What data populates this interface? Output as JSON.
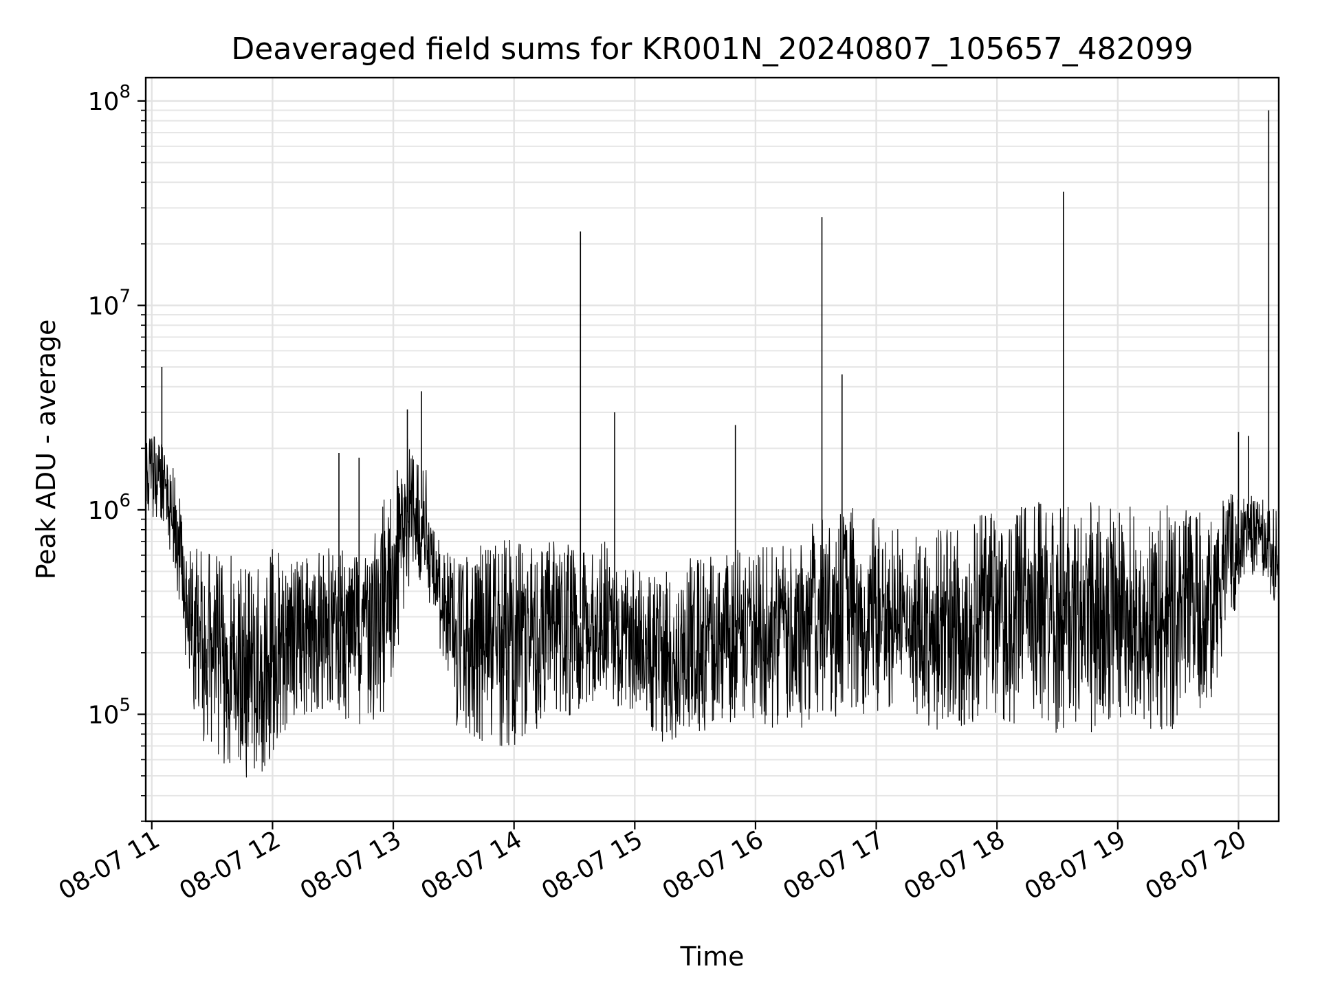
{
  "chart_data": {
    "type": "line",
    "title": "Deaveraged field sums for KR001N_20240807_105657_482099",
    "xlabel": "Time",
    "ylabel": "Peak ADU - average",
    "x_axis": {
      "kind": "datetime",
      "range": [
        "2024-08-07T10:57:00",
        "2024-08-07T20:20:00"
      ],
      "tick_values": [
        "2024-08-07T11:00",
        "2024-08-07T12:00",
        "2024-08-07T13:00",
        "2024-08-07T14:00",
        "2024-08-07T15:00",
        "2024-08-07T16:00",
        "2024-08-07T17:00",
        "2024-08-07T18:00",
        "2024-08-07T19:00",
        "2024-08-07T20:00"
      ],
      "tick_labels": [
        "08-07 11",
        "08-07 12",
        "08-07 13",
        "08-07 14",
        "08-07 15",
        "08-07 16",
        "08-07 17",
        "08-07 18",
        "08-07 19",
        "08-07 20"
      ]
    },
    "y_axis": {
      "scale": "log",
      "range": [
        30000,
        130000000
      ],
      "ticks": [
        {
          "value": 100000,
          "base": "10",
          "exp": "5"
        },
        {
          "value": 1000000,
          "base": "10",
          "exp": "6"
        },
        {
          "value": 10000000,
          "base": "10",
          "exp": "7"
        },
        {
          "value": 100000000,
          "base": "10",
          "exp": "8"
        }
      ]
    },
    "grid": true,
    "line_color": "#000000",
    "series": [
      {
        "x": [
          "2024-08-07T10:57",
          "2024-08-07T11:03",
          "2024-08-07T11:08",
          "2024-08-07T11:13",
          "2024-08-07T11:18",
          "2024-08-07T11:23",
          "2024-08-07T11:30",
          "2024-08-07T11:40",
          "2024-08-07T11:50",
          "2024-08-07T12:00",
          "2024-08-07T12:10",
          "2024-08-07T12:20",
          "2024-08-07T12:30",
          "2024-08-07T12:40",
          "2024-08-07T12:50",
          "2024-08-07T12:55",
          "2024-08-07T13:00",
          "2024-08-07T13:10",
          "2024-08-07T13:15",
          "2024-08-07T13:20",
          "2024-08-07T13:30",
          "2024-08-07T13:45",
          "2024-08-07T14:00",
          "2024-08-07T14:15",
          "2024-08-07T14:30",
          "2024-08-07T14:45",
          "2024-08-07T15:00",
          "2024-08-07T15:15",
          "2024-08-07T15:30",
          "2024-08-07T15:45",
          "2024-08-07T16:00",
          "2024-08-07T16:15",
          "2024-08-07T16:30",
          "2024-08-07T16:45",
          "2024-08-07T17:00",
          "2024-08-07T17:15",
          "2024-08-07T17:30",
          "2024-08-07T17:45",
          "2024-08-07T18:00",
          "2024-08-07T18:15",
          "2024-08-07T18:30",
          "2024-08-07T18:45",
          "2024-08-07T19:00",
          "2024-08-07T19:15",
          "2024-08-07T19:30",
          "2024-08-07T19:45",
          "2024-08-07T19:55",
          "2024-08-07T20:05",
          "2024-08-07T20:15",
          "2024-08-07T20:20"
        ],
        "lower": [
          900000,
          900000,
          700000,
          300000,
          150000,
          80000,
          60000,
          50000,
          45000,
          60000,
          90000,
          100000,
          110000,
          80000,
          90000,
          100000,
          150000,
          500000,
          400000,
          300000,
          80000,
          70000,
          70000,
          90000,
          100000,
          110000,
          100000,
          70000,
          80000,
          90000,
          90000,
          80000,
          90000,
          100000,
          100000,
          110000,
          80000,
          80000,
          90000,
          90000,
          80000,
          80000,
          90000,
          80000,
          85000,
          100000,
          250000,
          500000,
          400000,
          300000
        ],
        "upper": [
          2500000,
          2200000,
          2000000,
          1500000,
          700000,
          650000,
          600000,
          600000,
          550000,
          650000,
          600000,
          600000,
          700000,
          600000,
          700000,
          1200000,
          1800000,
          2500000,
          2000000,
          800000,
          600000,
          700000,
          750000,
          700000,
          700000,
          700000,
          500000,
          500000,
          600000,
          650000,
          650000,
          700000,
          900000,
          1100000,
          900000,
          800000,
          800000,
          900000,
          1000000,
          1100000,
          1100000,
          1100000,
          1100000,
          1100000,
          1100000,
          1000000,
          1200000,
          1200000,
          1100000,
          1000000
        ],
        "spikes": [
          {
            "x": "2024-08-07T11:05",
            "y": 5000000
          },
          {
            "x": "2024-08-07T12:33",
            "y": 1900000
          },
          {
            "x": "2024-08-07T12:43",
            "y": 1800000
          },
          {
            "x": "2024-08-07T13:07",
            "y": 3100000
          },
          {
            "x": "2024-08-07T13:14",
            "y": 3800000
          },
          {
            "x": "2024-08-07T14:33",
            "y": 23000000
          },
          {
            "x": "2024-08-07T14:50",
            "y": 3000000
          },
          {
            "x": "2024-08-07T15:50",
            "y": 2600000
          },
          {
            "x": "2024-08-07T16:33",
            "y": 27000000
          },
          {
            "x": "2024-08-07T16:43",
            "y": 4600000
          },
          {
            "x": "2024-08-07T18:33",
            "y": 36000000
          },
          {
            "x": "2024-08-07T20:00",
            "y": 2400000
          },
          {
            "x": "2024-08-07T20:05",
            "y": 2300000
          },
          {
            "x": "2024-08-07T20:15",
            "y": 90000000
          }
        ]
      }
    ]
  }
}
